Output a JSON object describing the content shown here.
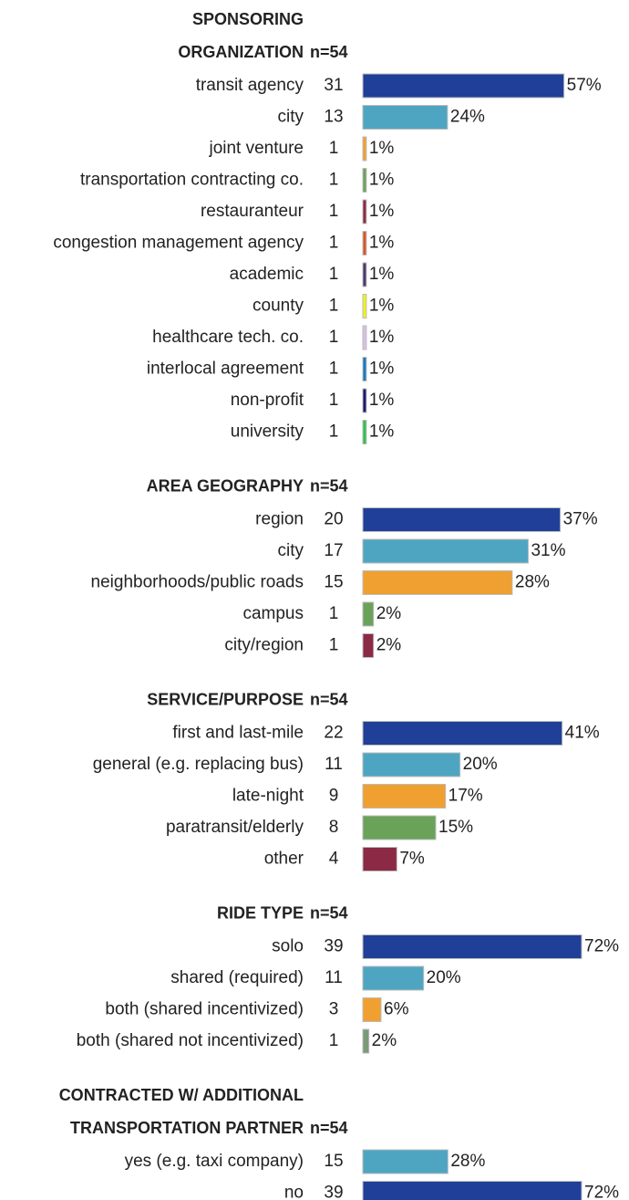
{
  "chart_data": [
    {
      "type": "bar",
      "title_lines": [
        "SPONSORING",
        "ORGANIZATION"
      ],
      "subtitle": "n=54",
      "categories": [
        "transit agency",
        "city",
        "joint venture",
        "transportation contracting co.",
        "restauranteur",
        "congestion management agency",
        "academic",
        "county",
        "healthcare tech. co.",
        "interlocal agreement",
        "non-profit",
        "university"
      ],
      "counts": [
        31,
        13,
        1,
        1,
        1,
        1,
        1,
        1,
        1,
        1,
        1,
        1
      ],
      "values": [
        57,
        24,
        1,
        1,
        1,
        1,
        1,
        1,
        1,
        1,
        1,
        1
      ],
      "value_labels": [
        "57%",
        "24%",
        "1%",
        "1%",
        "1%",
        "1%",
        "1%",
        "1%",
        "1%",
        "1%",
        "1%",
        "1%"
      ],
      "colors": [
        "#1f3f99",
        "#4ea5c2",
        "#f0a030",
        "#6aa25a",
        "#8b2a45",
        "#d8582a",
        "#4a3a6a",
        "#f2f21a",
        "#d8c0e8",
        "#1a7ac0",
        "#1a1a70",
        "#30c050"
      ],
      "xlim": [
        0,
        62
      ]
    },
    {
      "type": "bar",
      "title_lines": [
        "AREA GEOGRAPHY"
      ],
      "subtitle": "n=54",
      "categories": [
        "region",
        "city",
        "neighborhoods/public roads",
        "campus",
        "city/region"
      ],
      "counts": [
        20,
        17,
        15,
        1,
        1
      ],
      "values": [
        37,
        31,
        28,
        2,
        2
      ],
      "value_labels": [
        "37%",
        "31%",
        "28%",
        "2%",
        "2%"
      ],
      "colors": [
        "#1f3f99",
        "#4ea5c2",
        "#f0a030",
        "#6aa25a",
        "#8b2a45"
      ],
      "xlim": [
        0,
        41
      ]
    },
    {
      "type": "bar",
      "title_lines": [
        "SERVICE/PURPOSE"
      ],
      "subtitle": "n=54",
      "categories": [
        "first and last-mile",
        "general (e.g. replacing bus)",
        "late-night",
        "paratransit/elderly",
        "other"
      ],
      "counts": [
        22,
        11,
        9,
        8,
        4
      ],
      "values": [
        41,
        20,
        17,
        15,
        7
      ],
      "value_labels": [
        "41%",
        "20%",
        "17%",
        "15%",
        "7%"
      ],
      "colors": [
        "#1f3f99",
        "#4ea5c2",
        "#f0a030",
        "#6aa25a",
        "#8b2a45"
      ],
      "xlim": [
        0,
        45
      ]
    },
    {
      "type": "bar",
      "title_lines": [
        "RIDE TYPE"
      ],
      "subtitle": "n=54",
      "categories": [
        "solo",
        "shared (required)",
        "both (shared incentivized)",
        "both (shared not incentivized)"
      ],
      "counts": [
        39,
        11,
        3,
        1
      ],
      "values": [
        72,
        20,
        6,
        2
      ],
      "value_labels": [
        "72%",
        "20%",
        "6%",
        "2%"
      ],
      "colors": [
        "#1f3f99",
        "#4ea5c2",
        "#f0a030",
        "#7a9a7a"
      ],
      "xlim": [
        0,
        72
      ]
    },
    {
      "type": "bar",
      "title_lines": [
        "CONTRACTED W/ ADDITIONAL",
        "TRANSPORTATION PARTNER"
      ],
      "subtitle": "n=54",
      "categories": [
        "yes (e.g. taxi company)",
        "no"
      ],
      "counts": [
        15,
        39
      ],
      "values": [
        28,
        72
      ],
      "value_labels": [
        "28%",
        "72%"
      ],
      "colors": [
        "#4ea5c2",
        "#1f3f99"
      ],
      "xlim": [
        0,
        72
      ]
    }
  ]
}
